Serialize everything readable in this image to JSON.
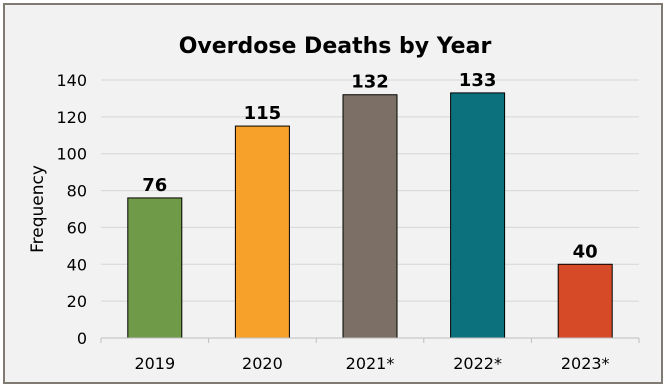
{
  "chart_data": {
    "type": "bar",
    "title": "Overdose Deaths by Year",
    "xlabel": "",
    "ylabel": "Frequency",
    "categories": [
      "2019",
      "2020",
      "2021*",
      "2022*",
      "2023*"
    ],
    "values": [
      76,
      115,
      132,
      133,
      40
    ],
    "colors": [
      "#6f9a48",
      "#f7a12b",
      "#7b6f66",
      "#0d717d",
      "#d64a27"
    ],
    "ylim": [
      0,
      140
    ],
    "yticks": [
      0,
      20,
      40,
      60,
      80,
      100,
      120,
      140
    ],
    "grid": true,
    "data_labels": [
      "76",
      "115",
      "132",
      "133",
      "40"
    ]
  }
}
